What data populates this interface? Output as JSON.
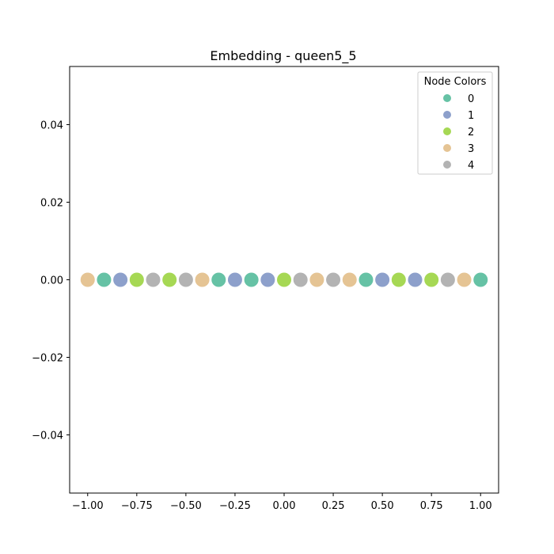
{
  "chart_data": {
    "type": "scatter",
    "title": "Embedding - queen5_5",
    "xlabel": "",
    "ylabel": "",
    "xlim": [
      -1.0917,
      1.0917
    ],
    "ylim": [
      -0.055,
      0.055
    ],
    "grid": false,
    "x_ticks": [
      -1.0,
      -0.75,
      -0.5,
      -0.25,
      0.0,
      0.25,
      0.5,
      0.75,
      1.0
    ],
    "x_tick_labels": [
      "−1.00",
      "−0.75",
      "−0.50",
      "−0.25",
      "0.00",
      "0.25",
      "0.50",
      "0.75",
      "1.00"
    ],
    "y_ticks": [
      -0.04,
      -0.02,
      0.0,
      0.02,
      0.04
    ],
    "y_tick_labels": [
      "−0.04",
      "−0.02",
      "0.00",
      "0.02",
      "0.04"
    ],
    "legend": {
      "title": "Node Colors",
      "placement": "top-right",
      "entries": [
        {
          "label": "0",
          "color": "#66c2a5"
        },
        {
          "label": "1",
          "color": "#8da0cb"
        },
        {
          "label": "2",
          "color": "#a6d854"
        },
        {
          "label": "3",
          "color": "#e5c494"
        },
        {
          "label": "4",
          "color": "#b3b3b3"
        }
      ]
    },
    "points": [
      {
        "x": -1.0,
        "y": 0,
        "color_class": 3
      },
      {
        "x": -0.9167,
        "y": 0,
        "color_class": 0
      },
      {
        "x": -0.8333,
        "y": 0,
        "color_class": 1
      },
      {
        "x": -0.75,
        "y": 0,
        "color_class": 2
      },
      {
        "x": -0.6667,
        "y": 0,
        "color_class": 4
      },
      {
        "x": -0.5833,
        "y": 0,
        "color_class": 2
      },
      {
        "x": -0.5,
        "y": 0,
        "color_class": 4
      },
      {
        "x": -0.4167,
        "y": 0,
        "color_class": 3
      },
      {
        "x": -0.3333,
        "y": 0,
        "color_class": 0
      },
      {
        "x": -0.25,
        "y": 0,
        "color_class": 1
      },
      {
        "x": -0.1667,
        "y": 0,
        "color_class": 0
      },
      {
        "x": -0.0833,
        "y": 0,
        "color_class": 1
      },
      {
        "x": 0.0,
        "y": 0,
        "color_class": 2
      },
      {
        "x": 0.0833,
        "y": 0,
        "color_class": 4
      },
      {
        "x": 0.1667,
        "y": 0,
        "color_class": 3
      },
      {
        "x": 0.25,
        "y": 0,
        "color_class": 4
      },
      {
        "x": 0.3333,
        "y": 0,
        "color_class": 3
      },
      {
        "x": 0.4167,
        "y": 0,
        "color_class": 0
      },
      {
        "x": 0.5,
        "y": 0,
        "color_class": 1
      },
      {
        "x": 0.5833,
        "y": 0,
        "color_class": 2
      },
      {
        "x": 0.6667,
        "y": 0,
        "color_class": 1
      },
      {
        "x": 0.75,
        "y": 0,
        "color_class": 2
      },
      {
        "x": 0.8333,
        "y": 0,
        "color_class": 4
      },
      {
        "x": 0.9167,
        "y": 0,
        "color_class": 3
      },
      {
        "x": 1.0,
        "y": 0,
        "color_class": 0
      }
    ]
  }
}
